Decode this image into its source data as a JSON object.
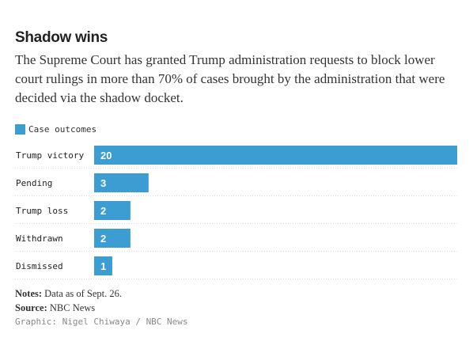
{
  "header": {
    "title": "Shadow wins",
    "subtitle": "The Supreme Court has granted Trump administration requests to block lower court rulings in more than 70% of cases brought by the administration that were decided via the shadow docket."
  },
  "legend": {
    "label": "Case outcomes"
  },
  "colors": {
    "bar": "#3b9dd1",
    "bar_label": "#ffffff",
    "row_divider": "#dddddd"
  },
  "chart_data": {
    "type": "bar",
    "orientation": "horizontal",
    "categories": [
      "Trump victory",
      "Pending",
      "Trump loss",
      "Withdrawn",
      "Dismissed"
    ],
    "series": [
      {
        "name": "Case outcomes",
        "values": [
          20,
          3,
          2,
          2,
          1
        ]
      }
    ],
    "xlim": [
      0,
      20
    ],
    "grid": false,
    "legend_position": "top-left",
    "data_labels": true
  },
  "footer": {
    "notes_label": "Notes:",
    "notes_text": "Data as of Sept. 26.",
    "source_label": "Source:",
    "source_text": "NBC News",
    "credit": "Graphic: Nigel Chiwaya / NBC News"
  }
}
